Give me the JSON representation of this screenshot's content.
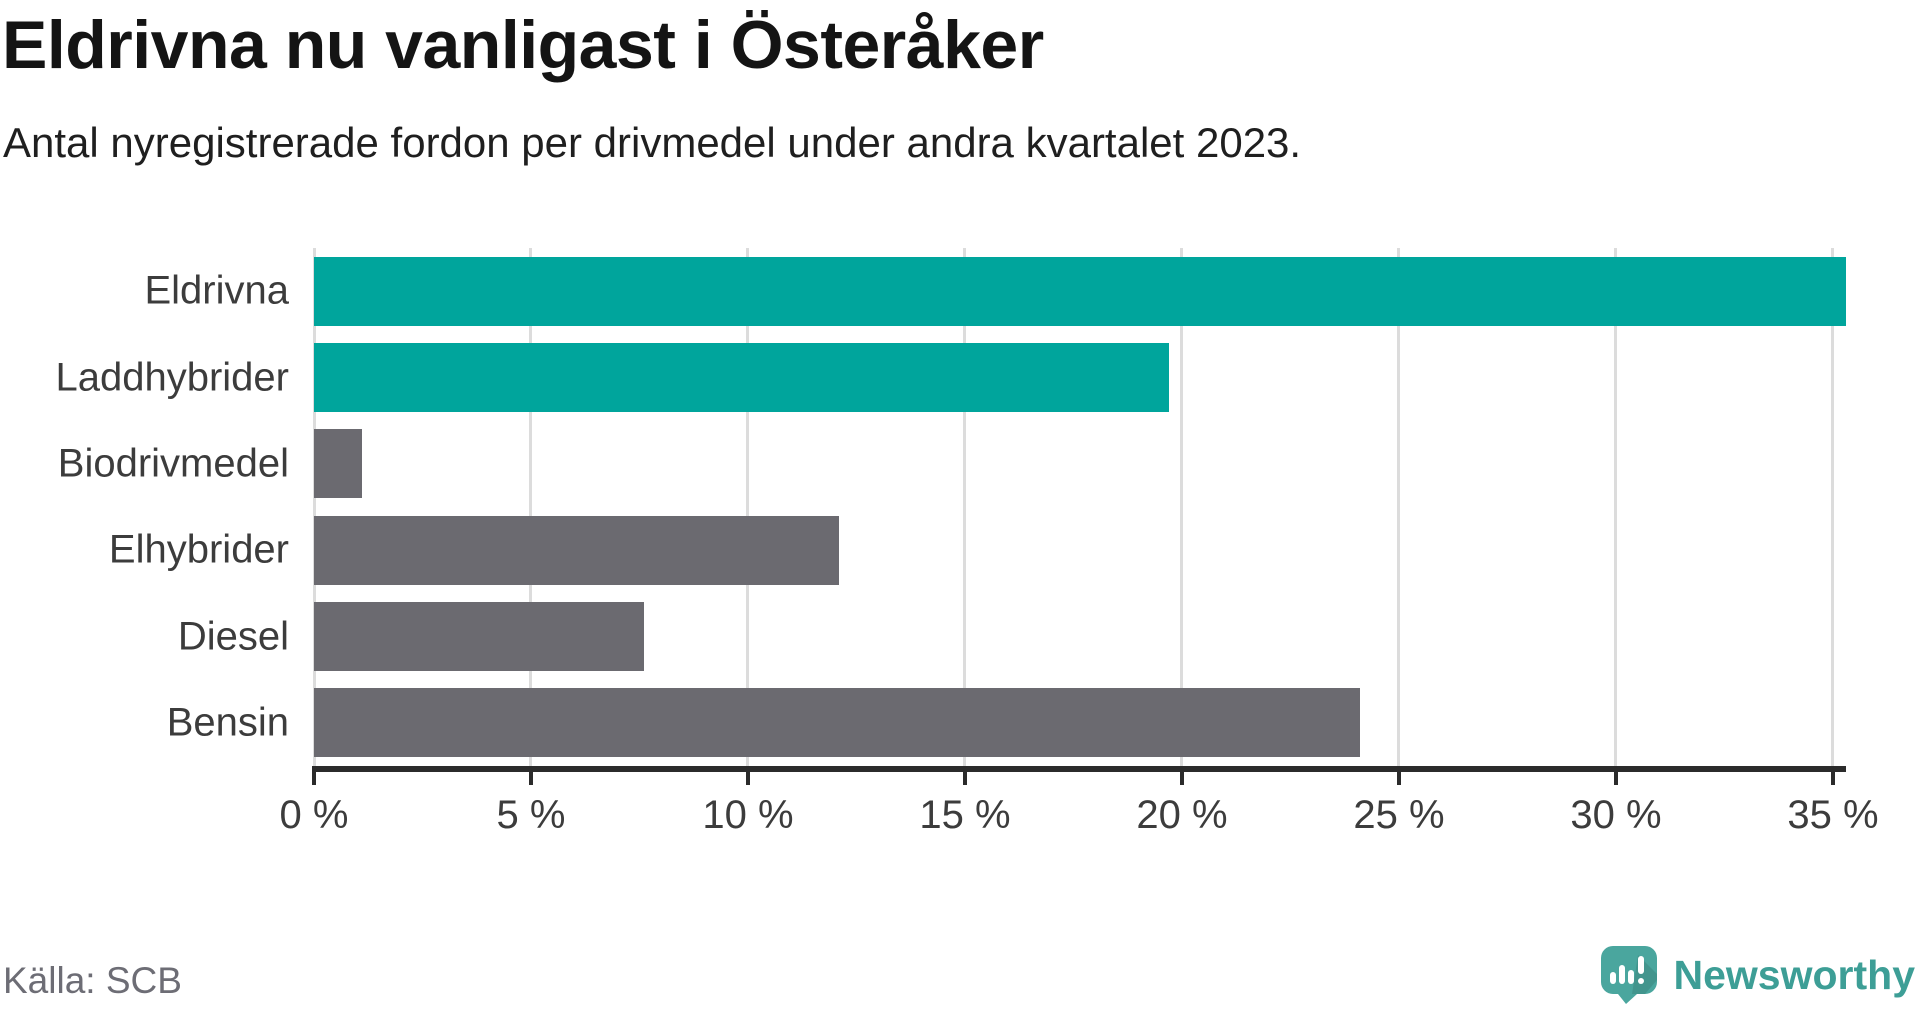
{
  "header": {
    "title": "Eldrivna nu vanligast i Österåker",
    "subtitle": "Antal nyregistrerade fordon per drivmedel under andra kvartalet 2023."
  },
  "chart_data": {
    "type": "bar",
    "orientation": "horizontal",
    "title": "Eldrivna nu vanligast i Österåker",
    "subtitle": "Antal nyregistrerade fordon per drivmedel under andra kvartalet 2023.",
    "categories": [
      "Eldrivna",
      "Laddhybrider",
      "Biodrivmedel",
      "Elhybrider",
      "Diesel",
      "Bensin"
    ],
    "values": [
      35.3,
      19.7,
      1.1,
      12.1,
      7.6,
      24.1
    ],
    "unit": "%",
    "series_colors": [
      "#00a59c",
      "#00a59c",
      "#6b6a70",
      "#6b6a70",
      "#6b6a70",
      "#6b6a70"
    ],
    "highlight_color": "#00a59c",
    "default_color": "#6b6a70",
    "xlabel": "",
    "ylabel": "",
    "xlim": [
      0,
      35.3
    ],
    "x_ticks": [
      0,
      5,
      10,
      15,
      20,
      25,
      30,
      35
    ],
    "x_tick_labels": [
      "0 %",
      "5 %",
      "10 %",
      "15 %",
      "20 %",
      "25 %",
      "30 %",
      "35 %"
    ],
    "grid": "vertical",
    "legend": "none"
  },
  "footer": {
    "source": "Källa: SCB",
    "brand": "Newsworthy"
  },
  "icons": {
    "brand_logo": "newsworthy-speech-bubble-chart-icon"
  },
  "colors": {
    "grid": "#dcdcdc",
    "axis": "#2b2b2b",
    "text": "#3c3c3c",
    "logo": "#4aa69e"
  }
}
